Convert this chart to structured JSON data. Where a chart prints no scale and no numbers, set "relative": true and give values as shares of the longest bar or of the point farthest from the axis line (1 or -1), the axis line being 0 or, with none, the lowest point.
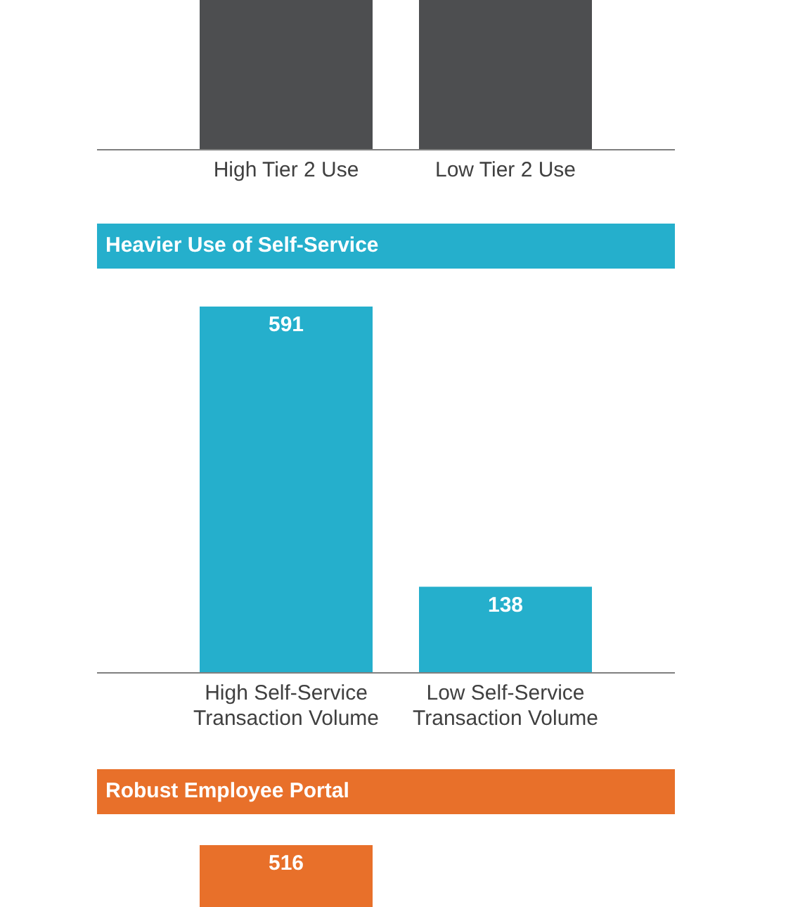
{
  "chart_data": [
    {
      "type": "bar",
      "categories": [
        "High Tier 2 Use",
        "Low Tier 2 Use"
      ],
      "values": [
        1,
        1
      ],
      "color": "#4d4e50",
      "relative": true
    },
    {
      "type": "bar",
      "title": "Heavier Use of Self-Service",
      "categories": [
        "High Self-Service Transaction Volume",
        "Low Self-Service Transaction Volume"
      ],
      "values": [
        591,
        138
      ],
      "color": "#25afcc",
      "data_labels": true
    },
    {
      "type": "bar",
      "title": "Robust Employee Portal",
      "categories": [
        null,
        null
      ],
      "values": [
        516,
        null
      ],
      "color": "#e8702a",
      "data_labels": true
    }
  ]
}
